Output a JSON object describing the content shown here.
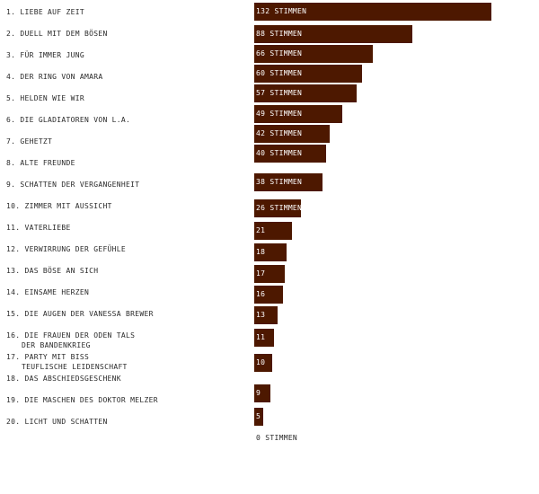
{
  "chart_data": {
    "type": "bar",
    "orientation": "horizontal",
    "colors": {
      "bar": "#4d1800",
      "label_text": "#2a2a2a",
      "value_text_inside": "#ffffff"
    },
    "value_suffix": "Stimmen",
    "items": [
      {
        "rank": "1.",
        "title": "Liebe auf Zeit",
        "value": 132,
        "label": "132 Stimmen"
      },
      {
        "rank": "2.",
        "title": "Duell mit dem Bösen",
        "value": 88,
        "label": "88 Stimmen"
      },
      {
        "rank": "3.",
        "title": "Für immer jung",
        "value": 66,
        "label": "66 Stimmen"
      },
      {
        "rank": "4.",
        "title": "Der Ring von Amara",
        "value": 60,
        "label": "60 Stimmen"
      },
      {
        "rank": "5.",
        "title": "Helden wie wir",
        "value": 57,
        "label": "57 Stimmen"
      },
      {
        "rank": "6.",
        "title": "Die Gladiatoren von L.A.",
        "value": 49,
        "label": "49 Stimmen"
      },
      {
        "rank": "7.",
        "title": "Gehetzt",
        "value": 42,
        "label": "42 Stimmen"
      },
      {
        "rank": "8.",
        "title": "Alte Freunde",
        "value": 40,
        "label": "40 Stimmen"
      },
      {
        "rank": "9.",
        "title": "Schatten der Vergangenheit",
        "value": 38,
        "label": "38 Stimmen"
      },
      {
        "rank": "10.",
        "title": "Zimmer mit Aussicht",
        "value": 26,
        "label": "26 Stimmen"
      },
      {
        "rank": "11.",
        "title": "Vaterliebe",
        "value": 21,
        "label": "21"
      },
      {
        "rank": "12.",
        "title": "Verwirrung der Gefühle",
        "value": 18,
        "label": "18"
      },
      {
        "rank": "13.",
        "title": "Das Böse an sich",
        "value": 17,
        "label": "17"
      },
      {
        "rank": "14.",
        "title": "Einsame Herzen",
        "value": 16,
        "label": "16"
      },
      {
        "rank": "15.",
        "title": "Die Augen der Vanessa Brewer",
        "value": 13,
        "label": "13"
      },
      {
        "rank": "16.",
        "title": "Die Frauen der Oden Tals",
        "title_line2": "Der Bandenkrieg",
        "value": 11,
        "label": "11"
      },
      {
        "rank": "17.",
        "title": "Party mit Biss",
        "title_line2": "Teuflische Leidenschaft",
        "value": 10,
        "label": "10"
      },
      {
        "rank": "18.",
        "title": "Das Abschiedsgeschenk",
        "value": 9,
        "label": "9"
      },
      {
        "rank": "19.",
        "title": "Die Maschen des Doktor Melzer",
        "value": 5,
        "label": "5"
      },
      {
        "rank": "20.",
        "title": "Licht und Schatten",
        "value": 0,
        "label": "0 Stimmen"
      }
    ]
  }
}
